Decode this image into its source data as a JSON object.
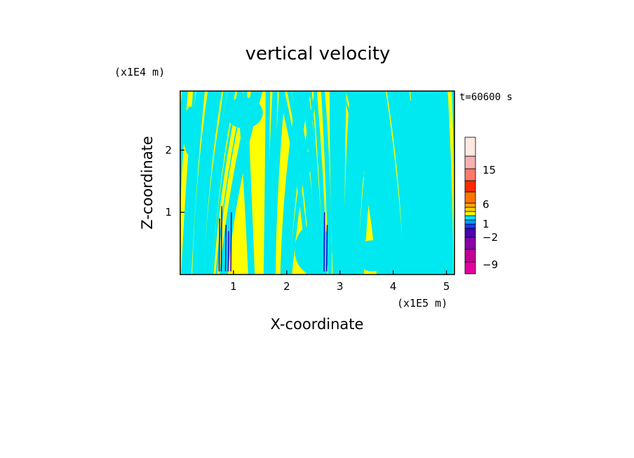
{
  "chart_data": {
    "type": "heatmap",
    "title": "vertical velocity",
    "xlabel": "X-coordinate",
    "ylabel": "Z-coordinate",
    "x_unit": "(x1E5 m)",
    "y_unit": "(x1E4 m)",
    "time_label": "t=60600 s",
    "xlim": [
      0,
      5.15
    ],
    "ylim": [
      0,
      2.95
    ],
    "x_ticks": [
      "1",
      "2",
      "3",
      "4",
      "5"
    ],
    "x_tick_values": [
      1,
      2,
      3,
      4,
      5
    ],
    "y_ticks": [
      "1",
      "2"
    ],
    "y_tick_values": [
      1,
      2
    ],
    "colorbar": {
      "bins": [
        {
          "color": "#e6009f"
        },
        {
          "color": "#c30096"
        },
        {
          "color": "#8b00a6"
        },
        {
          "color": "#4a00b4"
        },
        {
          "color": "#1a3cff"
        },
        {
          "color": "#00a0ff"
        },
        {
          "color": "#00e4ff"
        },
        {
          "color": "#ffff00"
        },
        {
          "color": "#ffd000"
        },
        {
          "color": "#ffa500"
        },
        {
          "color": "#ff7300"
        },
        {
          "color": "#ff2a00"
        },
        {
          "color": "#ff7a6a"
        },
        {
          "color": "#f5b0b0"
        },
        {
          "color": "#fde8e2"
        }
      ],
      "labels": [
        {
          "text": "15",
          "value": 15
        },
        {
          "text": "6",
          "value": 6
        },
        {
          "text": "1",
          "value": 1
        },
        {
          "text": "−2",
          "value": -2
        },
        {
          "text": "−9",
          "value": -9
        }
      ]
    },
    "field_colors": {
      "positive": "#ffff00",
      "negative": "#00e8f0",
      "strong_negative": "#2a00c8"
    }
  }
}
